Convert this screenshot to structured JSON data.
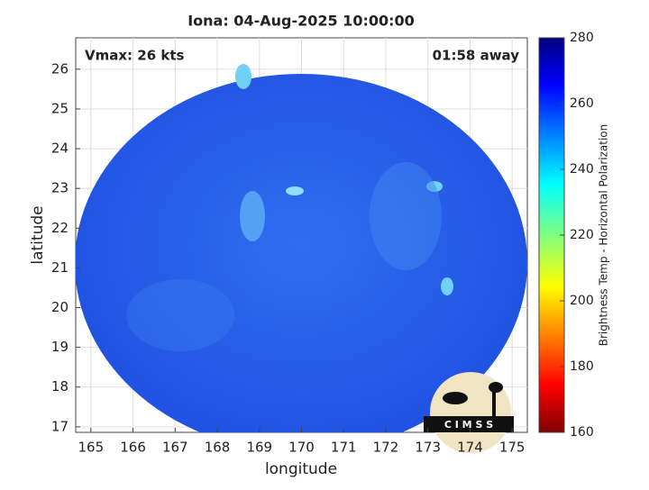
{
  "chart_data": {
    "type": "heatmap",
    "title": "Iona: 04-Aug-2025 10:00:00",
    "x_label": "longitude",
    "y_label": "latitude",
    "xlim": [
      164.64,
      175.36
    ],
    "ylim": [
      16.86,
      26.79
    ],
    "xticks": [
      165,
      166,
      167,
      168,
      169,
      170,
      171,
      172,
      173,
      174,
      175
    ],
    "yticks": [
      17,
      18,
      19,
      20,
      21,
      22,
      23,
      24,
      25,
      26
    ],
    "grid": true,
    "annotations": [
      "Vmax: 26 kts",
      "01:58 away"
    ],
    "colorbar": {
      "label": "Brightness Temp - Horizontal Polarization",
      "clim": [
        160,
        280
      ],
      "ticks": [
        160,
        180,
        200,
        220,
        240,
        260,
        280
      ],
      "colormap": "jet"
    },
    "logo_text": "C I M S S"
  }
}
